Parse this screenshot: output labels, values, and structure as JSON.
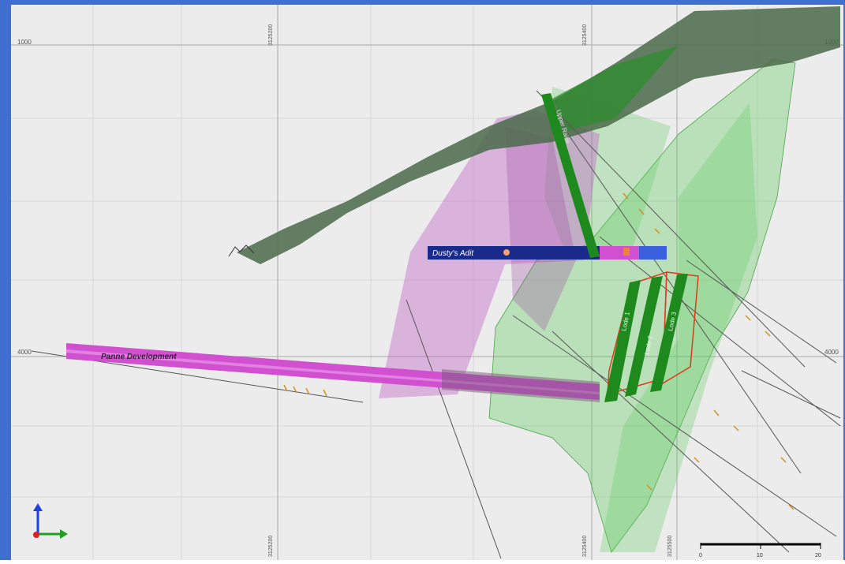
{
  "section": {
    "grid_labels": {
      "left_top": "1000",
      "right_top": "1000",
      "left_mid": "4000",
      "right_mid": "4000",
      "col1_top": "3125200",
      "col2_top": "3125400",
      "col1_bottom": "3125200",
      "col2_bottom": "3125400",
      "col3_bottom": "3125500"
    },
    "workings": {
      "adit": "Dusty's Adit",
      "decline": "Panne Development",
      "shaft": "Upper Raise"
    },
    "lodes": [
      "Lode 1",
      "Lode 2",
      "Lode 3"
    ],
    "lode_colors": {
      "lode": "#1e8a1e",
      "stope_outline": "#e03a1a",
      "adit": "#1a2a8a",
      "decline": "#d050d0",
      "topo": "#4a6a4a",
      "envelope": "#5ecb5e"
    },
    "scale_bar": {
      "labels": [
        "0",
        "10",
        "20"
      ]
    },
    "axis_triad": {
      "colors": {
        "x": "#e02020",
        "y": "#20a020",
        "z": "#2040e0"
      }
    }
  }
}
